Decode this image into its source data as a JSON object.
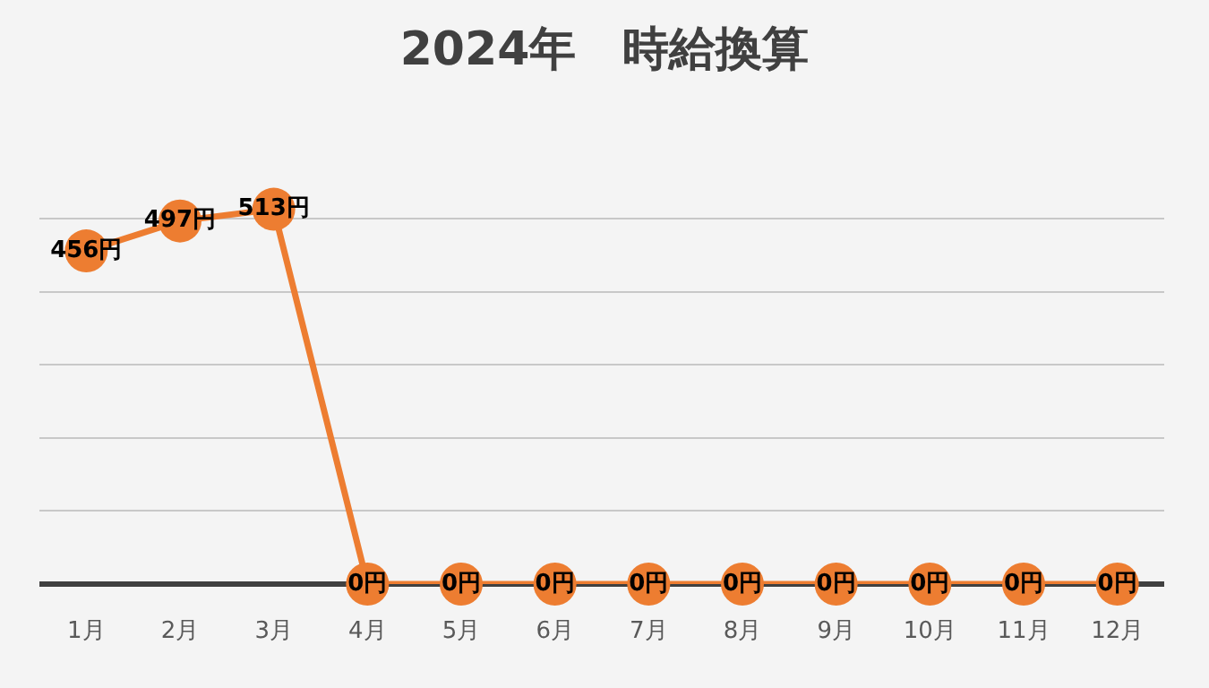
{
  "chart_data": {
    "type": "line",
    "title": "2024年　時給換算",
    "categories": [
      "1月",
      "2月",
      "3月",
      "4月",
      "5月",
      "6月",
      "7月",
      "8月",
      "9月",
      "10月",
      "11月",
      "12月"
    ],
    "series": [
      {
        "color": "#ed7d31",
        "values": [
          456,
          497,
          513,
          0,
          0,
          0,
          0,
          0,
          0,
          0,
          0,
          0
        ],
        "value_labels": [
          "456円",
          "497円",
          "513円",
          "0円",
          "0円",
          "0円",
          "0円",
          "0円",
          "0円",
          "0円",
          "0円",
          "0円"
        ]
      }
    ],
    "tick_labels": "x",
    "grid": "y",
    "marker": "circle",
    "line_style": "solid"
  }
}
